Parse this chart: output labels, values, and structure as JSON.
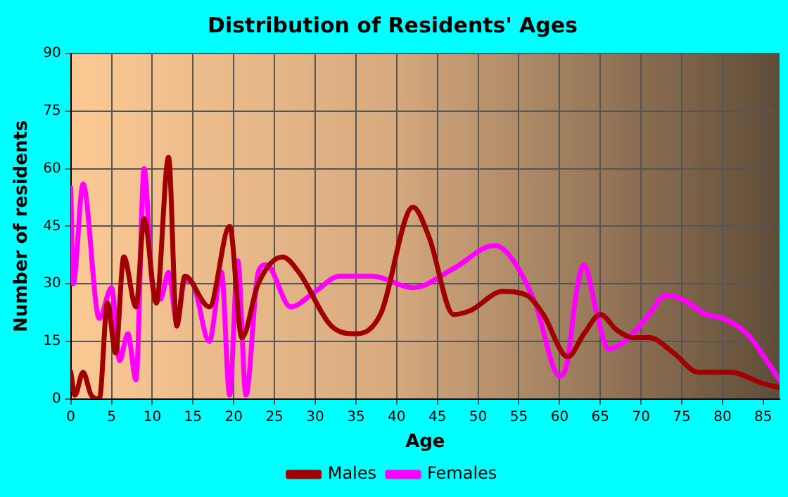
{
  "chart_data": {
    "type": "line",
    "title": "Distribution of Residents' Ages",
    "xlabel": "Age",
    "ylabel": "Number of residents",
    "xlim": [
      0,
      87
    ],
    "xticks": [
      0,
      5,
      10,
      15,
      20,
      25,
      30,
      35,
      40,
      45,
      50,
      55,
      60,
      65,
      70,
      75,
      80,
      85
    ],
    "ylim": [
      0,
      90
    ],
    "yticks": [
      0,
      15,
      30,
      45,
      60,
      75,
      90
    ],
    "grid": true,
    "legend": "bottom",
    "marker": "none",
    "line_style": "solid",
    "series": [
      {
        "name": "Males",
        "color": "#a00000",
        "x": [
          0,
          0.5,
          1.5,
          2.5,
          3.5,
          4.5,
          5.5,
          6.5,
          8,
          9,
          10.5,
          12,
          13,
          14,
          17,
          19.5,
          21,
          23,
          26,
          28,
          32,
          35,
          38,
          42,
          44,
          47,
          49,
          53,
          56,
          58,
          61,
          63,
          65,
          67,
          69,
          71,
          74,
          77,
          81,
          85,
          87
        ],
        "values": [
          7,
          1,
          7,
          1,
          0,
          25,
          12,
          37,
          24,
          47,
          25,
          63,
          19,
          32,
          24,
          45,
          16,
          30,
          37,
          33,
          19,
          17,
          22,
          50,
          42,
          22,
          23,
          28,
          27,
          22,
          11,
          17,
          22,
          18,
          16,
          16,
          12,
          7,
          7,
          4,
          3
        ]
      },
      {
        "name": "Females",
        "color": "#ff00ff",
        "x": [
          0,
          0.3,
          1.5,
          3.5,
          5,
          6,
          7,
          8,
          9,
          10,
          11,
          12,
          13,
          14,
          15,
          17,
          18.5,
          19.5,
          20.5,
          21.5,
          23,
          24,
          27,
          30,
          33,
          37,
          42,
          47,
          52,
          54,
          57,
          60,
          61,
          62,
          63,
          64.5,
          66,
          68,
          71,
          73,
          75,
          78,
          80,
          83,
          87
        ],
        "values": [
          55,
          30,
          56,
          21,
          29,
          10,
          17,
          5,
          60,
          30,
          26,
          33,
          20,
          31,
          30,
          15,
          33,
          1,
          36,
          1,
          33,
          35,
          24,
          28,
          32,
          32,
          29,
          34,
          40,
          37,
          25,
          6,
          10,
          27,
          35,
          23,
          13,
          15,
          22,
          27,
          26,
          22,
          21,
          17,
          5
        ]
      }
    ]
  }
}
